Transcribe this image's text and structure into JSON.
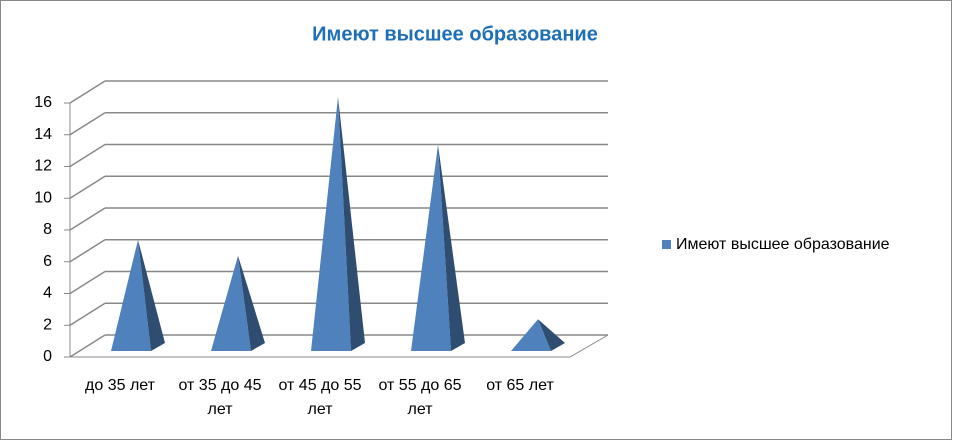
{
  "chart_data": {
    "type": "pyramid",
    "title": "Имеют высшее образование",
    "categories": [
      "до 35 лет",
      "от 35 до 45 лет",
      "от 45 до 55 лет",
      "от 55 до 65 лет",
      "от 65 лет"
    ],
    "series": [
      {
        "name": "Имеют высшее образование",
        "color": "#4f81bd",
        "values": [
          7,
          6,
          16,
          13,
          2
        ]
      }
    ],
    "ylim": [
      0,
      16
    ],
    "yticks": [
      0,
      2,
      4,
      6,
      8,
      10,
      12,
      14,
      16
    ],
    "grid": true,
    "legend": "right"
  }
}
